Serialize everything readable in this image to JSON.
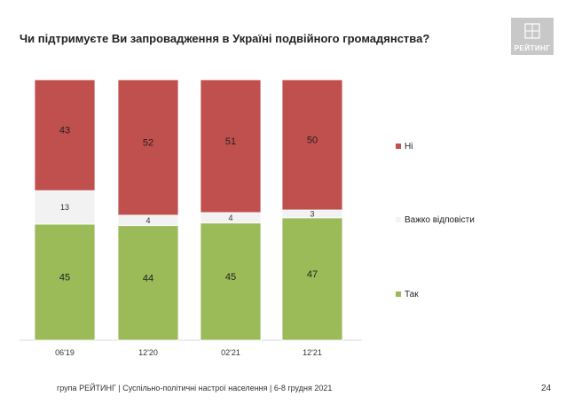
{
  "title": "Чи підтримуєте Ви запровадження в Україні подвійного громадянства?",
  "logo": {
    "text": "РЕЙТИНГ"
  },
  "footer": {
    "text": "група РЕЙТИНГ | Суспільно-політичні настрої населення  | 6-8 грудня 2021",
    "page": "24"
  },
  "chart_data": {
    "type": "bar",
    "stacked": true,
    "percent_stacked": true,
    "categories": [
      "06'19",
      "12'20",
      "02'21",
      "12'21"
    ],
    "series": [
      {
        "name": "Так",
        "color": "#9bbb59",
        "values": [
          45,
          44,
          45,
          47
        ]
      },
      {
        "name": "Важко відповісти",
        "color": "#f2f2f2",
        "values": [
          13,
          4,
          4,
          3
        ]
      },
      {
        "name": "Ні",
        "color": "#c0504d",
        "values": [
          43,
          52,
          51,
          50
        ]
      }
    ],
    "legend_order": [
      "Ні",
      "Важко відповісти",
      "Так"
    ],
    "legend_position": "right",
    "grid": false
  }
}
